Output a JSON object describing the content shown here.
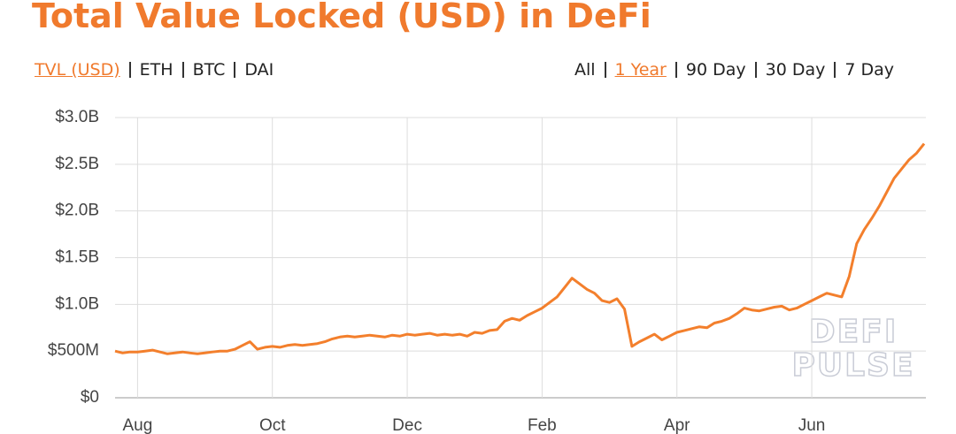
{
  "header": {
    "title": "Total Value Locked (USD) in DeFi",
    "metric_tabs": [
      "TVL (USD)",
      "ETH",
      "BTC",
      "DAI"
    ],
    "active_metric": 0,
    "range_tabs": [
      "All",
      "1 Year",
      "90 Day",
      "30 Day",
      "7 Day"
    ],
    "active_range": 1
  },
  "watermark": [
    "DEFI",
    "PULSE"
  ],
  "chart_data": {
    "type": "line",
    "color": "#f37f2c",
    "grid": true,
    "ylim": [
      0,
      3
    ],
    "yticks": [
      {
        "value": 0,
        "label": "$0"
      },
      {
        "value": 0.5,
        "label": "$500M"
      },
      {
        "value": 1,
        "label": "$1.0B"
      },
      {
        "value": 1.5,
        "label": "$1.5B"
      },
      {
        "value": 2,
        "label": "$2.0B"
      },
      {
        "value": 2.5,
        "label": "$2.5B"
      },
      {
        "value": 3,
        "label": "$3.0B"
      }
    ],
    "categories": [
      null,
      null,
      null,
      "Aug",
      null,
      null,
      null,
      null,
      null,
      null,
      null,
      null,
      null,
      null,
      null,
      null,
      null,
      null,
      null,
      null,
      null,
      "Oct",
      null,
      null,
      null,
      null,
      null,
      null,
      null,
      null,
      null,
      null,
      null,
      null,
      null,
      null,
      null,
      null,
      null,
      "Dec",
      null,
      null,
      null,
      null,
      null,
      null,
      null,
      null,
      null,
      null,
      null,
      null,
      null,
      null,
      null,
      null,
      null,
      "Feb",
      null,
      null,
      null,
      null,
      null,
      null,
      null,
      null,
      null,
      null,
      null,
      null,
      null,
      null,
      null,
      null,
      null,
      "Apr",
      null,
      null,
      null,
      null,
      null,
      null,
      null,
      null,
      null,
      null,
      null,
      null,
      null,
      null,
      null,
      null,
      null,
      "Jun",
      null,
      null,
      null,
      null,
      null,
      null,
      null,
      null,
      null,
      null,
      null,
      null,
      null,
      null,
      null
    ],
    "values": [
      0.5,
      0.48,
      0.49,
      0.49,
      0.5,
      0.51,
      0.49,
      0.47,
      0.48,
      0.49,
      0.48,
      0.47,
      0.48,
      0.49,
      0.5,
      0.5,
      0.52,
      0.56,
      0.6,
      0.52,
      0.54,
      0.55,
      0.54,
      0.56,
      0.57,
      0.56,
      0.57,
      0.58,
      0.6,
      0.63,
      0.65,
      0.66,
      0.65,
      0.66,
      0.67,
      0.66,
      0.65,
      0.67,
      0.66,
      0.68,
      0.67,
      0.68,
      0.69,
      0.67,
      0.68,
      0.67,
      0.68,
      0.66,
      0.7,
      0.69,
      0.72,
      0.73,
      0.82,
      0.85,
      0.83,
      0.88,
      0.92,
      0.96,
      1.02,
      1.08,
      1.18,
      1.28,
      1.22,
      1.16,
      1.12,
      1.04,
      1.02,
      1.06,
      0.95,
      0.55,
      0.6,
      0.64,
      0.68,
      0.62,
      0.66,
      0.7,
      0.72,
      0.74,
      0.76,
      0.75,
      0.8,
      0.82,
      0.85,
      0.9,
      0.96,
      0.94,
      0.93,
      0.95,
      0.97,
      0.98,
      0.94,
      0.96,
      1.0,
      1.04,
      1.08,
      1.12,
      1.1,
      1.08,
      1.3,
      1.65,
      1.8,
      1.92,
      2.05,
      2.2,
      2.35,
      2.45,
      2.55,
      2.62,
      2.72
    ]
  }
}
